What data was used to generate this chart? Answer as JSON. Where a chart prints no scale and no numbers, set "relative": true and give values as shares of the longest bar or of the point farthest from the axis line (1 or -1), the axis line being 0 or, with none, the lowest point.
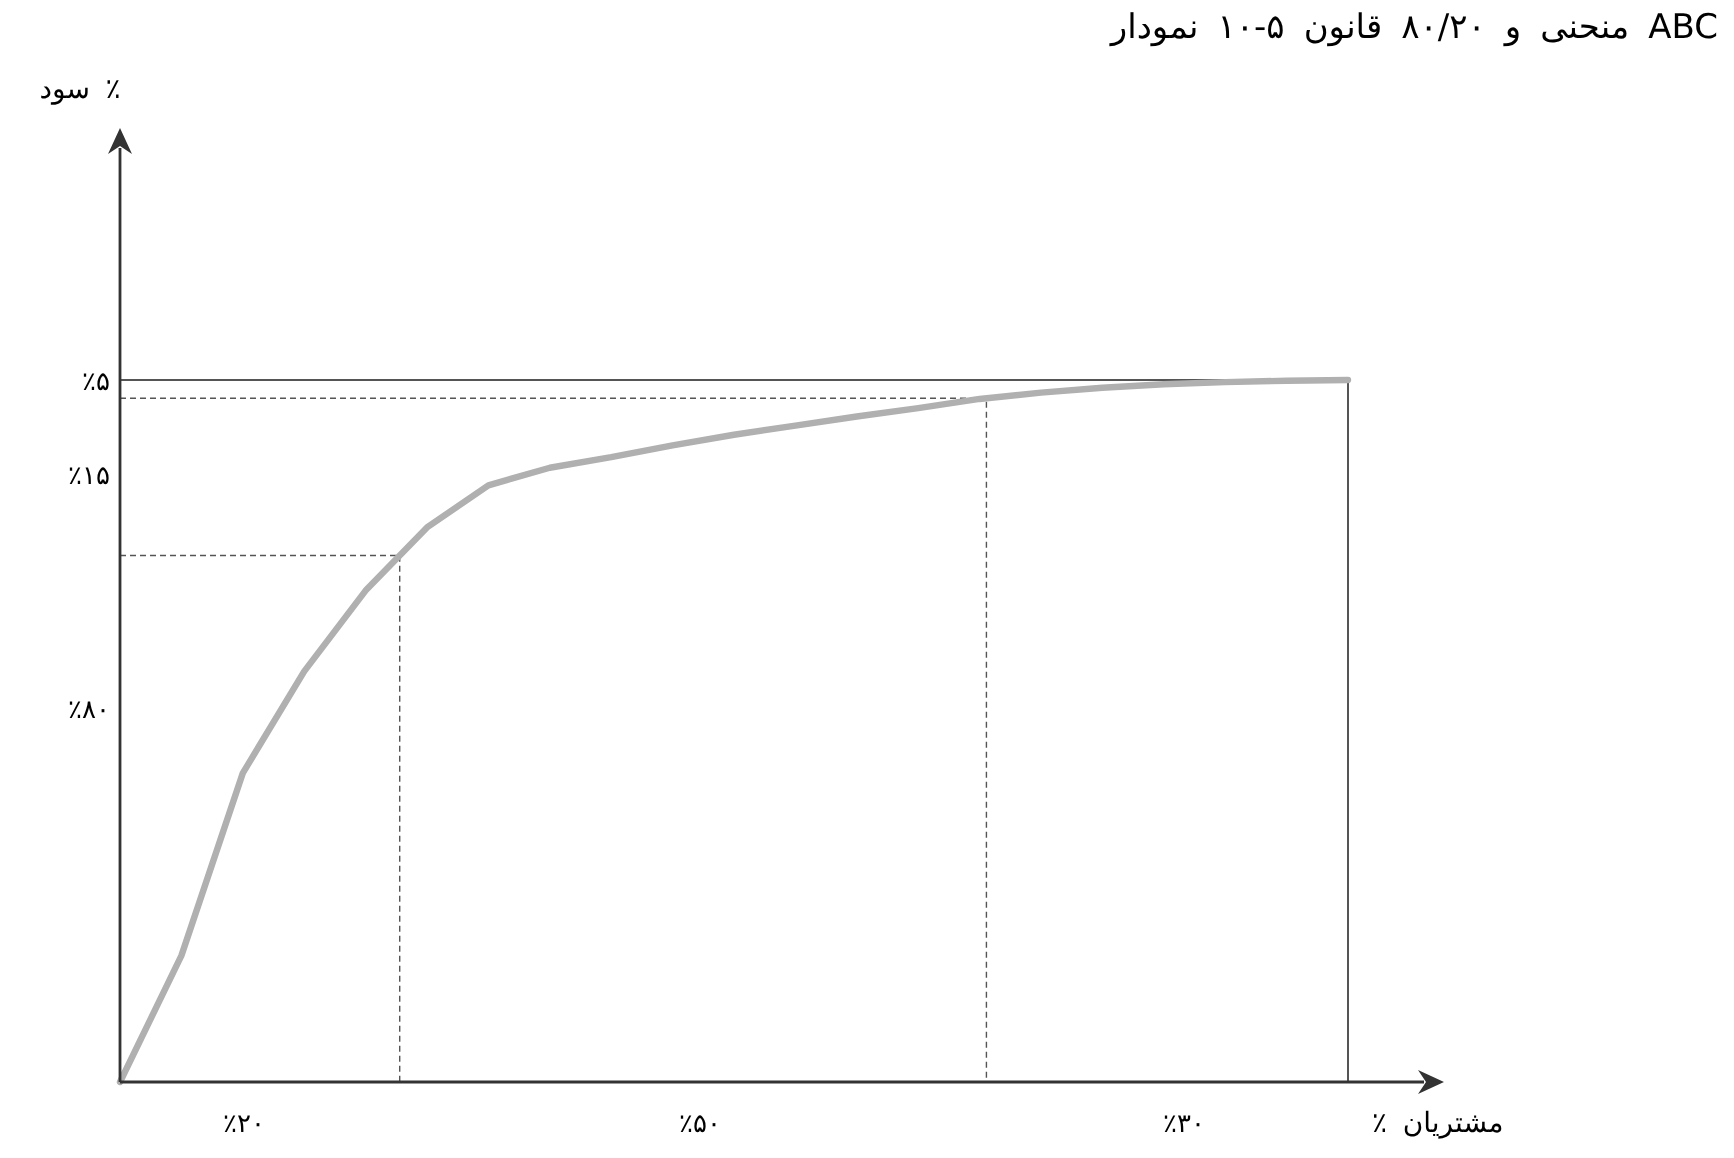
{
  "chart_data": {
    "type": "line",
    "title": "نمودار ۱۰-۵ قانون ۸۰/۲۰ و منحنی ABC",
    "xlabel": "٪ مشتریان",
    "relative": true,
    "categories": [
      null,
      null,
      null,
      null,
      null,
      null,
      null,
      null,
      null,
      null,
      null,
      null,
      null,
      null,
      null,
      null,
      null,
      null,
      null,
      null,
      null
    ],
    "annotations": [
      "٪۲۰",
      "٪۵۰",
      "٪۳۰",
      "٪۸۰",
      "٪۱۵",
      "٪۵",
      "سود ٪"
    ],
    "ref_lines": [
      {
        "axis": "y",
        "value": 0.75,
        "line_style": "dashed"
      },
      {
        "axis": "y",
        "value": 0.974,
        "line_style": "dashed"
      },
      {
        "axis": "y",
        "value": 1,
        "line_style": "solid"
      }
    ],
    "series": [
      {
        "color": "#b0b0b0",
        "values": [
          0,
          0.18,
          0.44,
          0.585,
          0.7,
          0.79,
          0.85,
          0.875,
          0.89,
          0.907,
          0.922,
          0.935,
          0.948,
          0.96,
          0.973,
          0.982,
          0.989,
          0.994,
          0.997,
          0.999,
          1
        ]
      }
    ]
  }
}
